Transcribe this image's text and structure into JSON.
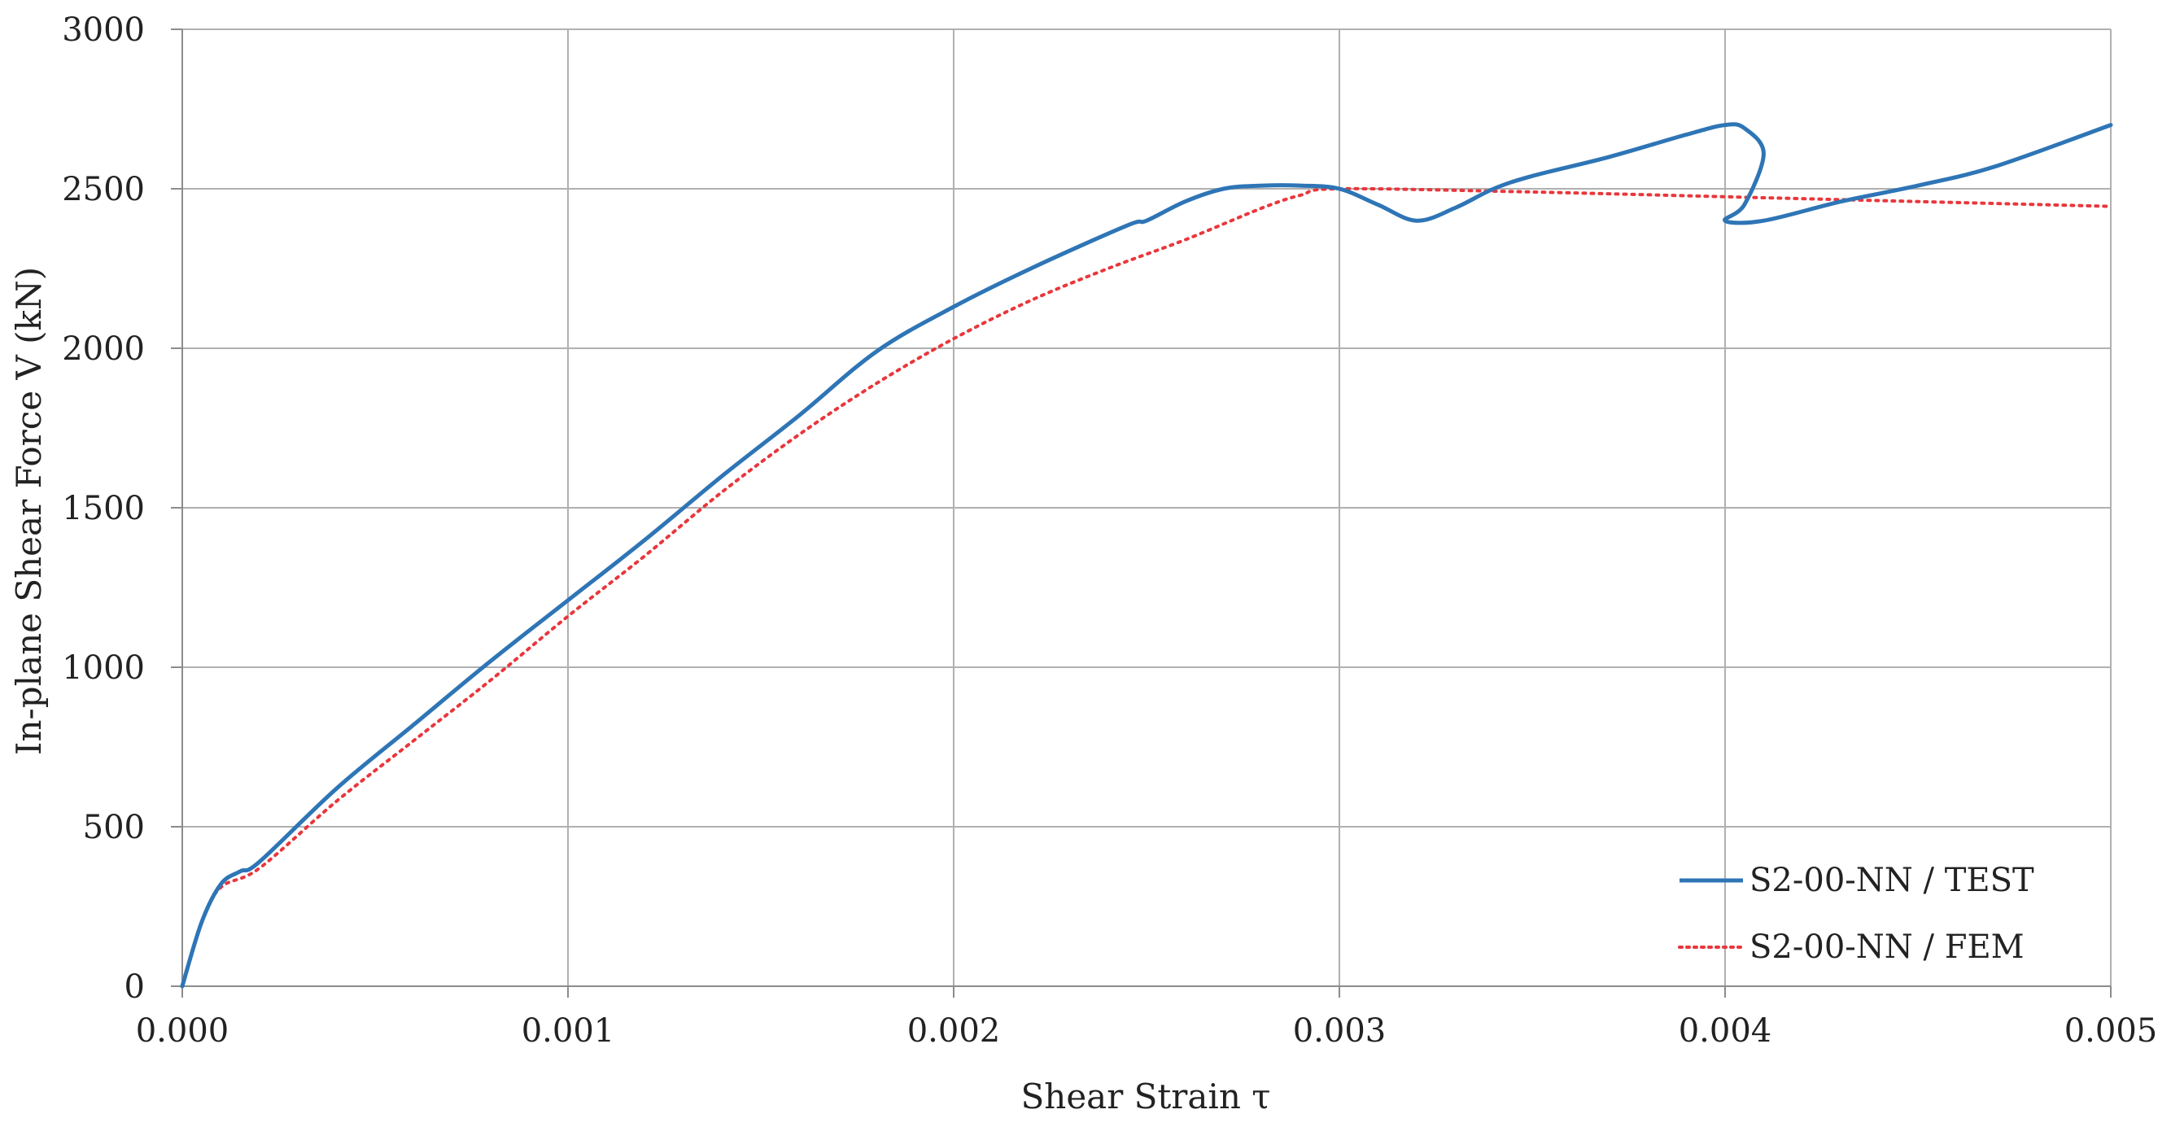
{
  "chart_data": {
    "type": "line",
    "title": "",
    "xlabel": "Shear Strain τ",
    "ylabel": "In-plane Shear Force V (kN)",
    "xlim": [
      0,
      0.005
    ],
    "ylim": [
      0,
      3000
    ],
    "x_ticks": [
      0,
      0.001,
      0.002,
      0.003,
      0.004,
      0.005
    ],
    "x_tick_labels": [
      "0.000",
      "0.001",
      "0.002",
      "0.003",
      "0.004",
      "0.005"
    ],
    "y_ticks": [
      0,
      500,
      1000,
      1500,
      2000,
      2500,
      3000
    ],
    "y_tick_labels": [
      "0",
      "500",
      "1000",
      "1500",
      "2000",
      "2500",
      "3000"
    ],
    "grid": true,
    "legend_position": "bottom-right",
    "series": [
      {
        "name": "S2-00-NN / TEST",
        "color": "#2e75b6",
        "style": "solid",
        "points": [
          [
            0.0,
            0
          ],
          [
            5e-05,
            200
          ],
          [
            0.0001,
            320
          ],
          [
            0.00015,
            360
          ],
          [
            0.0002,
            390
          ],
          [
            0.0004,
            620
          ],
          [
            0.0006,
            820
          ],
          [
            0.0008,
            1020
          ],
          [
            0.001,
            1210
          ],
          [
            0.0012,
            1400
          ],
          [
            0.0014,
            1600
          ],
          [
            0.0016,
            1790
          ],
          [
            0.0018,
            1990
          ],
          [
            0.002,
            2130
          ],
          [
            0.0022,
            2250
          ],
          [
            0.00245,
            2385
          ],
          [
            0.0025,
            2400
          ],
          [
            0.0026,
            2460
          ],
          [
            0.0027,
            2500
          ],
          [
            0.0028,
            2510
          ],
          [
            0.0029,
            2510
          ],
          [
            0.003,
            2500
          ],
          [
            0.0031,
            2450
          ],
          [
            0.0032,
            2400
          ],
          [
            0.0033,
            2440
          ],
          [
            0.0034,
            2500
          ],
          [
            0.0035,
            2540
          ],
          [
            0.0037,
            2600
          ],
          [
            0.0039,
            2670
          ],
          [
            0.004,
            2700
          ],
          [
            0.00405,
            2690
          ],
          [
            0.0041,
            2610
          ],
          [
            0.00405,
            2450
          ],
          [
            0.004,
            2400
          ],
          [
            0.0041,
            2400
          ],
          [
            0.0043,
            2460
          ],
          [
            0.0045,
            2510
          ],
          [
            0.0047,
            2570
          ],
          [
            0.005,
            2700
          ]
        ]
      },
      {
        "name": "S2-00-NN / FEM",
        "color": "#e8373c",
        "style": "dotted",
        "points": [
          [
            0.0,
            0
          ],
          [
            5e-05,
            200
          ],
          [
            0.0001,
            310
          ],
          [
            0.0002,
            370
          ],
          [
            0.0004,
            580
          ],
          [
            0.0006,
            770
          ],
          [
            0.0008,
            960
          ],
          [
            0.001,
            1160
          ],
          [
            0.0012,
            1350
          ],
          [
            0.0014,
            1550
          ],
          [
            0.0016,
            1730
          ],
          [
            0.0018,
            1890
          ],
          [
            0.002,
            2030
          ],
          [
            0.0022,
            2150
          ],
          [
            0.0024,
            2250
          ],
          [
            0.0026,
            2340
          ],
          [
            0.0028,
            2440
          ],
          [
            0.0029,
            2480
          ],
          [
            0.003,
            2500
          ],
          [
            0.0035,
            2490
          ],
          [
            0.004,
            2475
          ],
          [
            0.0045,
            2460
          ],
          [
            0.005,
            2445
          ]
        ]
      }
    ]
  }
}
